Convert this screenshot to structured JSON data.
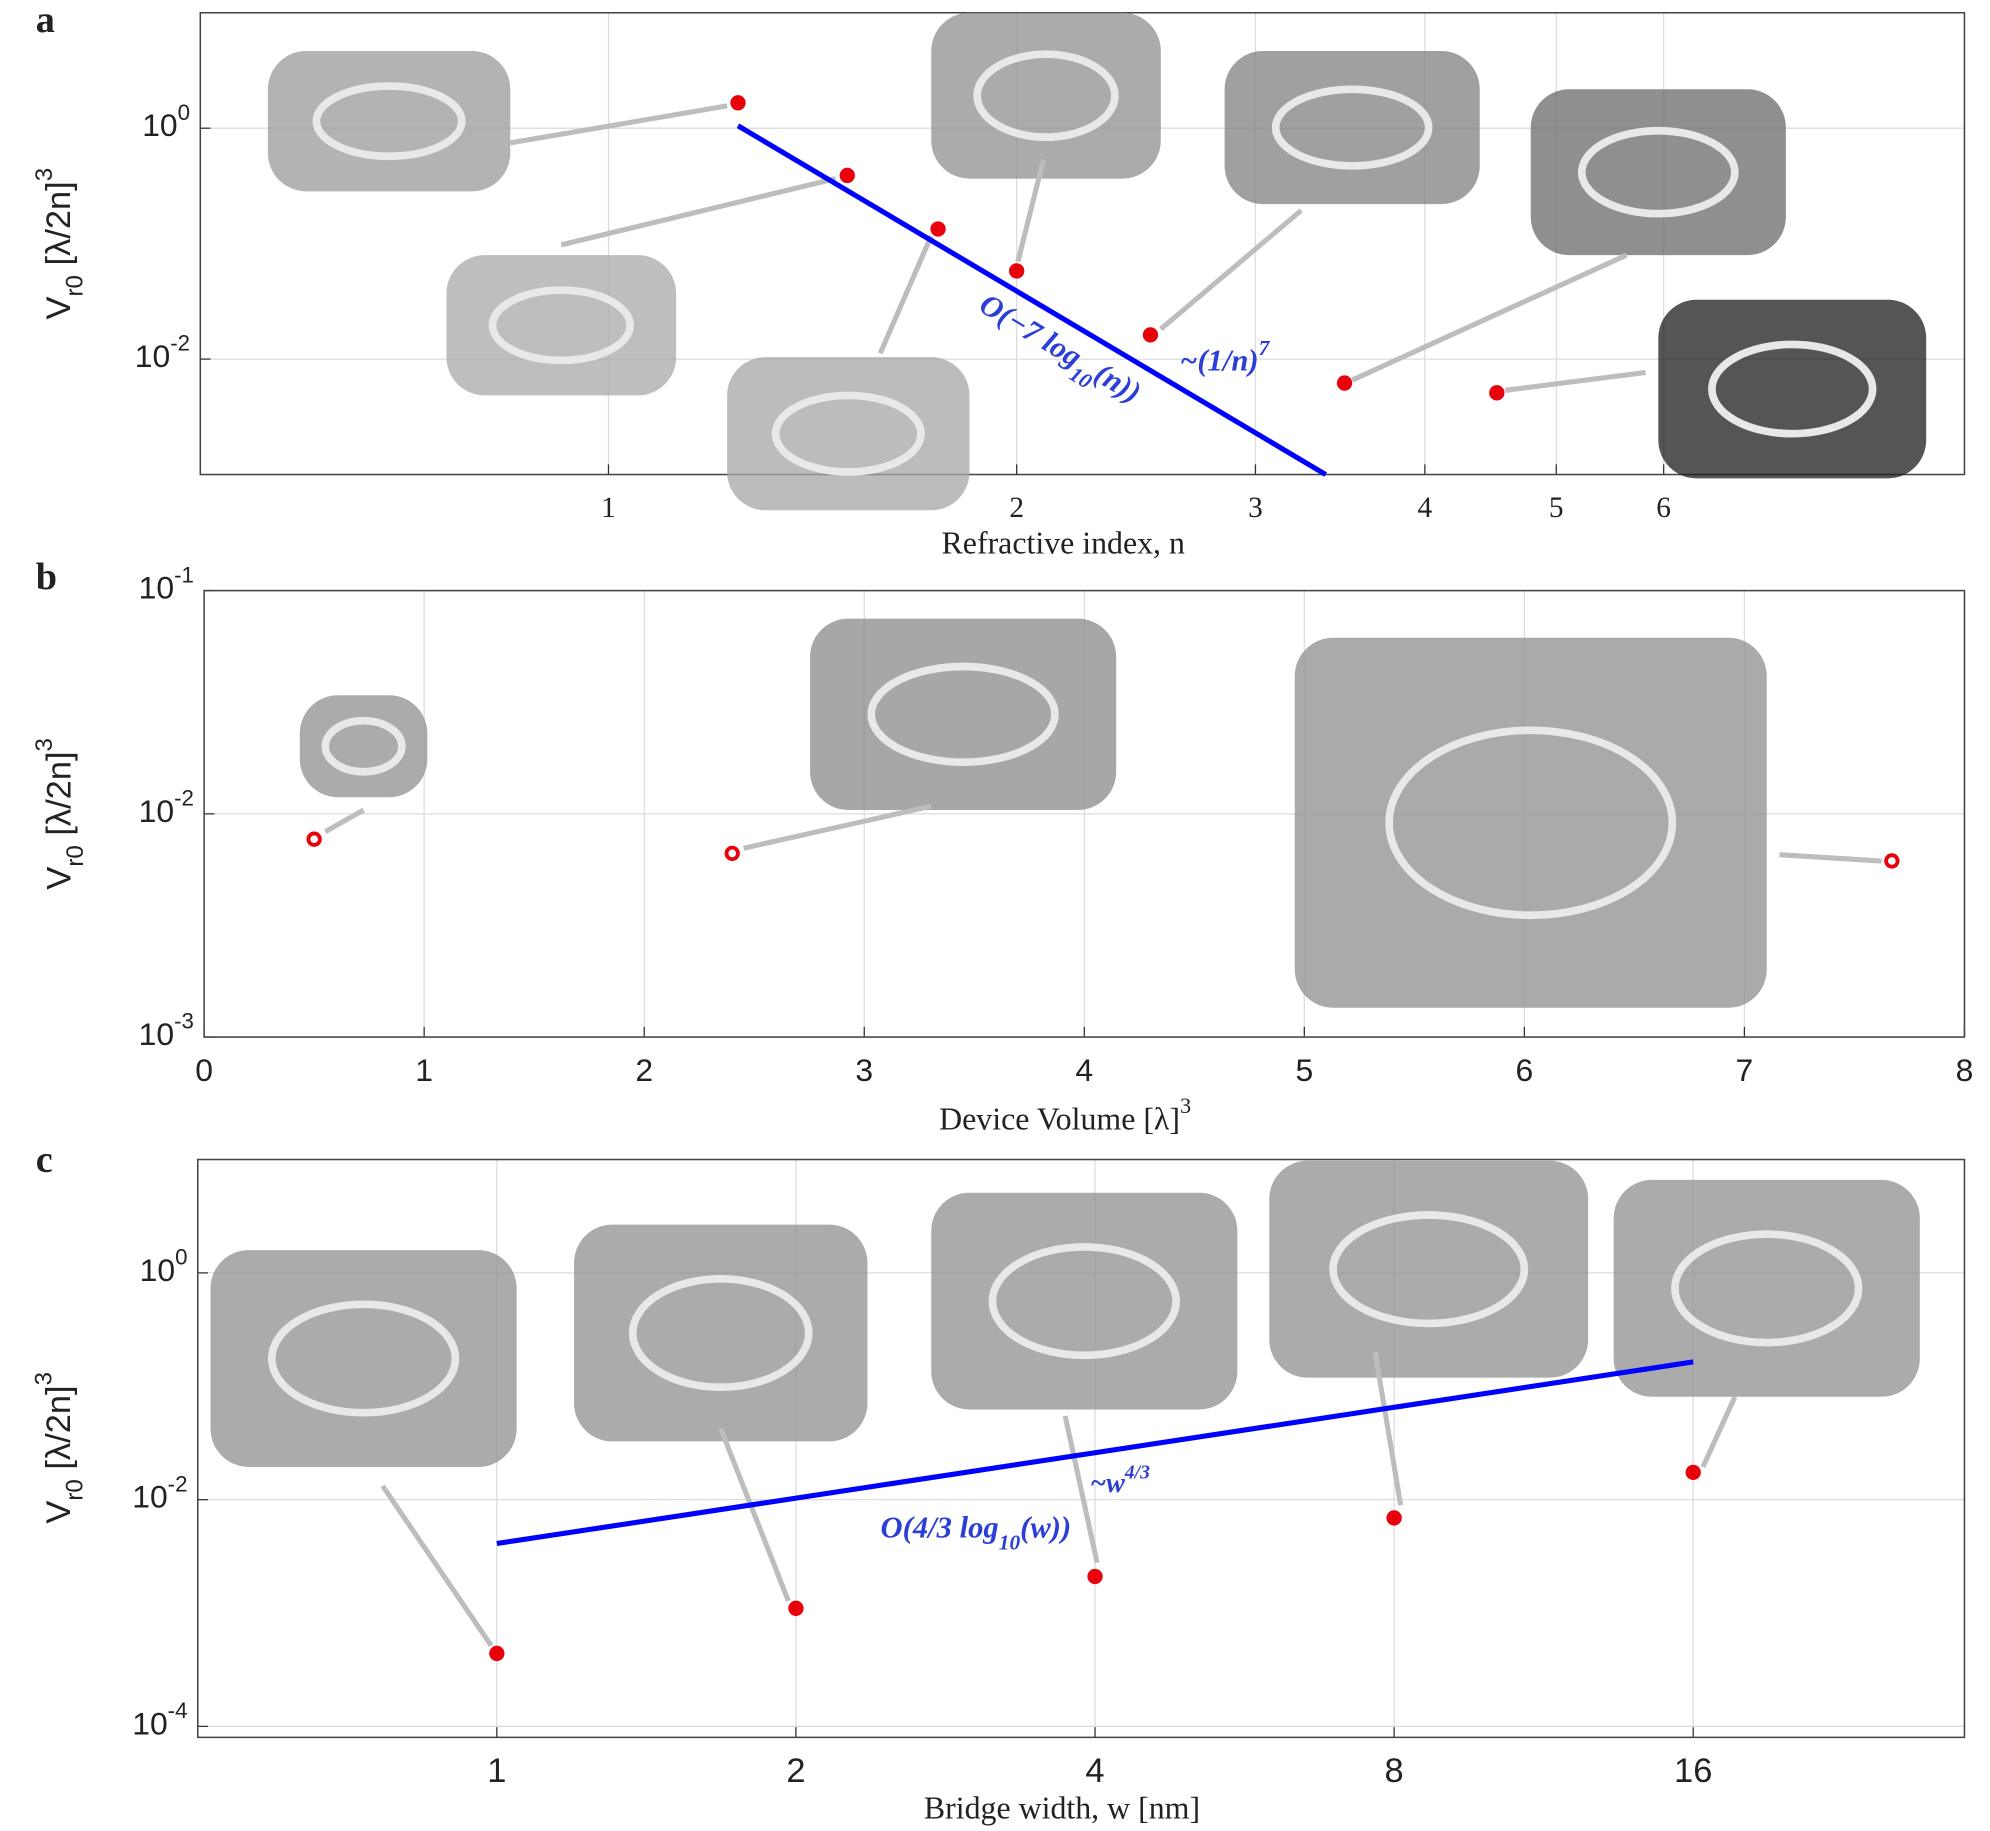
{
  "chart_data": [
    {
      "type": "scatter",
      "label": "a",
      "xlabel": "Refractive index, n",
      "ylabel": "V_{r0} [λ/2n]^{3}",
      "xscale": "log",
      "yscale": "log",
      "xlim": [
        0.5,
        10
      ],
      "ylim": [
        0.001,
        10
      ],
      "grid": true,
      "xticks": [
        1,
        2,
        3,
        4,
        5,
        6
      ],
      "yticks": [
        {
          "value": 0.01,
          "label": "10^{-2}"
        },
        {
          "value": 1,
          "label": "10^{0}"
        }
      ],
      "series": [
        {
          "style": "line",
          "color": "#0000ff",
          "x": [
            1.246,
            3.38
          ],
          "values": [
            1.05,
            0.001
          ]
        },
        {
          "style": "filled",
          "color": "#e8000b",
          "x": [
            1.246,
            1.5,
            1.75,
            2.0,
            2.51,
            3.49,
            4.52
          ],
          "values": [
            1.66,
            0.39,
            0.134,
            0.058,
            0.0162,
            0.0062,
            0.0051
          ]
        }
      ],
      "annotations": [
        {
          "text": "O(−7 log_{10}(n))",
          "color": "#2b3fd6"
        },
        {
          "text": "~(1/n)^{7}",
          "color": "#2b3fd6"
        }
      ]
    },
    {
      "type": "scatter",
      "label": "b",
      "xlabel": "Device Volume [λ]^{3}",
      "ylabel": "V_{r0} [λ/2n]^{3}",
      "xscale": "linear",
      "yscale": "log",
      "xlim": [
        0,
        8
      ],
      "ylim": [
        0.001,
        0.1
      ],
      "grid": true,
      "xticks": [
        0,
        1,
        2,
        3,
        4,
        5,
        6,
        7,
        8
      ],
      "yticks": [
        {
          "value": 0.001,
          "label": "10^{-3}"
        },
        {
          "value": 0.01,
          "label": "10^{-2}"
        },
        {
          "value": 0.1,
          "label": "10^{-1}"
        }
      ],
      "series": [
        {
          "style": "open",
          "color": "#e8000b",
          "x": [
            0.5,
            2.4,
            7.67
          ],
          "values": [
            0.0077,
            0.00665,
            0.00615
          ]
        }
      ]
    },
    {
      "type": "scatter",
      "label": "c",
      "xlabel": "Bridge width, w [nm]",
      "ylabel": "V_{r0} [λ/2n]^{3}",
      "xscale": "log",
      "yscale": "log",
      "xlim": [
        0.5,
        30
      ],
      "ylim": [
        8e-05,
        10
      ],
      "grid": true,
      "xticks": [
        1,
        2,
        4,
        8,
        16
      ],
      "yticks": [
        {
          "value": 0.0001,
          "label": "10^{-4}"
        },
        {
          "value": 0.01,
          "label": "10^{-2}"
        },
        {
          "value": 1,
          "label": "10^{0}"
        }
      ],
      "series": [
        {
          "style": "line",
          "color": "#0000ff",
          "x": [
            1,
            16
          ],
          "values": [
            0.0041,
            0.164
          ]
        },
        {
          "style": "filled",
          "color": "#e8000b",
          "x": [
            1,
            2,
            4,
            8,
            16
          ],
          "values": [
            0.00044,
            0.0011,
            0.0021,
            0.0069,
            0.0174
          ]
        }
      ],
      "annotations": [
        {
          "text": "O(4/3 log_{10}(w))",
          "color": "#2b3fd6"
        },
        {
          "text": "~w^{4/3}",
          "color": "#2b3fd6"
        }
      ]
    }
  ]
}
